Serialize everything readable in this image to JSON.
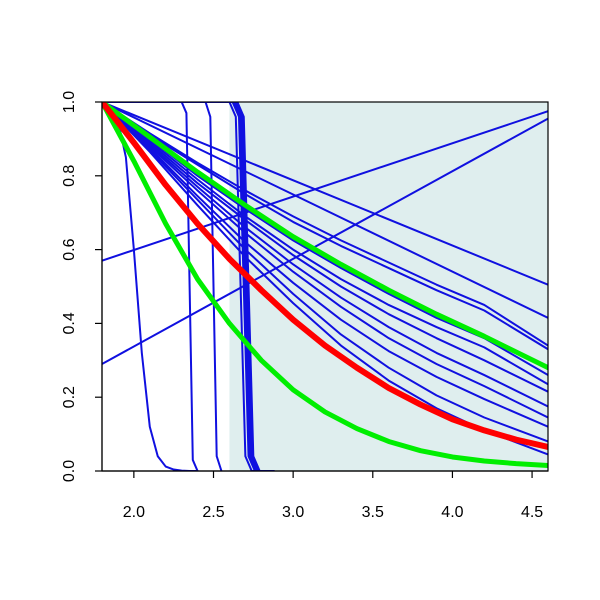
{
  "chart_data": {
    "type": "line",
    "title": "",
    "xlabel": "",
    "ylabel": "",
    "xlim": [
      1.8,
      4.6
    ],
    "ylim": [
      0.0,
      1.0
    ],
    "x_ticks": [
      "2.0",
      "2.5",
      "3.0",
      "3.5",
      "4.0",
      "4.5"
    ],
    "y_ticks": [
      "0.0",
      "0.2",
      "0.4",
      "0.6",
      "0.8",
      "1.0"
    ],
    "grid": false,
    "legend": "none",
    "colors": {
      "blue": "#1010e0",
      "red": "#ff0000",
      "green": "#00ee00",
      "shaded_region": "#dfeeee"
    },
    "shaded_region": {
      "x_start": 2.6,
      "x_end": 4.6,
      "y_start": 0.0,
      "y_end": 1.0
    },
    "series": [
      {
        "color": "blue",
        "width": 2,
        "x": [
          1.8,
          4.6
        ],
        "y": [
          0.57,
          0.975
        ]
      },
      {
        "color": "blue",
        "width": 2,
        "x": [
          1.8,
          4.6
        ],
        "y": [
          0.29,
          0.955
        ]
      },
      {
        "color": "blue",
        "width": 2,
        "x": [
          1.8,
          4.6
        ],
        "y": [
          1.0,
          0.505
        ]
      },
      {
        "color": "blue",
        "width": 2,
        "x": [
          1.8,
          4.6
        ],
        "y": [
          1.0,
          0.415
        ]
      },
      {
        "color": "blue",
        "width": 2,
        "x": [
          1.8,
          2.1,
          2.4,
          2.7,
          3.0,
          3.3,
          3.6,
          3.9,
          4.2,
          4.6
        ],
        "y": [
          1.0,
          0.915,
          0.835,
          0.76,
          0.69,
          0.625,
          0.565,
          0.505,
          0.45,
          0.34
        ]
      },
      {
        "color": "blue",
        "width": 2,
        "x": [
          1.8,
          2.1,
          2.4,
          2.7,
          3.0,
          3.3,
          3.6,
          3.9,
          4.2,
          4.6
        ],
        "y": [
          1.0,
          0.91,
          0.83,
          0.75,
          0.675,
          0.61,
          0.55,
          0.49,
          0.435,
          0.33
        ]
      },
      {
        "color": "blue",
        "width": 2,
        "x": [
          1.8,
          2.1,
          2.4,
          2.7,
          3.0,
          3.3,
          3.6,
          3.9,
          4.2,
          4.6
        ],
        "y": [
          1.0,
          0.9,
          0.8,
          0.71,
          0.625,
          0.55,
          0.48,
          0.415,
          0.36,
          0.26
        ]
      },
      {
        "color": "blue",
        "width": 2,
        "x": [
          1.8,
          2.1,
          2.4,
          2.7,
          3.0,
          3.3,
          3.6,
          3.9,
          4.2,
          4.6
        ],
        "y": [
          1.0,
          0.895,
          0.79,
          0.69,
          0.6,
          0.52,
          0.45,
          0.39,
          0.335,
          0.235
        ]
      },
      {
        "color": "blue",
        "width": 2,
        "x": [
          1.8,
          2.1,
          2.4,
          2.7,
          3.0,
          3.3,
          3.6,
          3.9,
          4.2,
          4.6
        ],
        "y": [
          1.0,
          0.89,
          0.78,
          0.68,
          0.585,
          0.5,
          0.425,
          0.36,
          0.3,
          0.215
        ]
      },
      {
        "color": "blue",
        "width": 2,
        "x": [
          1.8,
          2.1,
          2.4,
          2.7,
          3.0,
          3.3,
          3.6,
          3.9,
          4.2,
          4.6
        ],
        "y": [
          1.0,
          0.885,
          0.77,
          0.66,
          0.56,
          0.47,
          0.39,
          0.32,
          0.26,
          0.175
        ]
      },
      {
        "color": "blue",
        "width": 2,
        "x": [
          1.8,
          2.1,
          2.4,
          2.7,
          3.0,
          3.3,
          3.6,
          3.9,
          4.2,
          4.6
        ],
        "y": [
          1.0,
          0.88,
          0.76,
          0.645,
          0.54,
          0.445,
          0.36,
          0.29,
          0.23,
          0.145
        ]
      },
      {
        "color": "blue",
        "width": 2,
        "x": [
          1.8,
          2.1,
          2.4,
          2.7,
          3.0,
          3.3,
          3.6,
          3.9,
          4.2,
          4.6
        ],
        "y": [
          1.0,
          0.875,
          0.745,
          0.62,
          0.51,
          0.41,
          0.325,
          0.255,
          0.195,
          0.12
        ]
      },
      {
        "color": "blue",
        "width": 2,
        "x": [
          1.8,
          2.1,
          2.4,
          2.7,
          3.0,
          3.3,
          3.6,
          3.9,
          4.2,
          4.6
        ],
        "y": [
          1.0,
          0.87,
          0.735,
          0.6,
          0.48,
          0.37,
          0.28,
          0.205,
          0.145,
          0.08
        ]
      },
      {
        "color": "blue",
        "width": 2,
        "x": [
          1.8,
          2.1,
          2.4,
          2.7,
          3.0,
          3.3,
          3.6,
          3.9,
          4.2,
          4.6
        ],
        "y": [
          1.0,
          0.865,
          0.72,
          0.58,
          0.455,
          0.34,
          0.245,
          0.17,
          0.11,
          0.045
        ]
      },
      {
        "color": "blue",
        "width": 2,
        "x": [
          1.8,
          1.85,
          1.9,
          1.95,
          2.0,
          2.05,
          2.1,
          2.15,
          2.2,
          2.25,
          2.3,
          2.35,
          2.4
        ],
        "y": [
          1.0,
          0.985,
          0.95,
          0.85,
          0.6,
          0.32,
          0.12,
          0.04,
          0.012,
          0.004,
          0.001,
          0.0,
          0.0
        ]
      },
      {
        "color": "blue",
        "width": 2,
        "x": [
          1.8,
          2.3,
          2.33,
          2.35,
          2.37,
          2.4
        ],
        "y": [
          1.0,
          1.0,
          0.97,
          0.5,
          0.03,
          0.0
        ]
      },
      {
        "color": "blue",
        "width": 2,
        "x": [
          1.8,
          2.45,
          2.48,
          2.5,
          2.52,
          2.55
        ],
        "y": [
          1.0,
          1.0,
          0.96,
          0.5,
          0.04,
          0.0
        ]
      },
      {
        "color": "blue",
        "width": 2,
        "x": [
          1.8,
          2.6,
          2.64,
          2.67,
          2.7,
          2.74,
          2.8
        ],
        "y": [
          1.0,
          1.0,
          0.96,
          0.5,
          0.04,
          0.0,
          0.0
        ]
      },
      {
        "color": "blue",
        "width": 2,
        "x": [
          1.8,
          2.62,
          2.66,
          2.69,
          2.72,
          2.76,
          2.82
        ],
        "y": [
          1.0,
          1.0,
          0.96,
          0.5,
          0.04,
          0.0,
          0.0
        ]
      },
      {
        "color": "blue",
        "width": 2,
        "x": [
          1.8,
          2.63,
          2.67,
          2.7,
          2.73,
          2.77,
          2.84
        ],
        "y": [
          1.0,
          1.0,
          0.96,
          0.5,
          0.04,
          0.0,
          0.0
        ]
      },
      {
        "color": "blue",
        "width": 2,
        "x": [
          1.8,
          2.64,
          2.68,
          2.71,
          2.74,
          2.78,
          2.86
        ],
        "y": [
          1.0,
          1.0,
          0.96,
          0.5,
          0.04,
          0.0,
          0.0
        ]
      },
      {
        "color": "blue",
        "width": 2,
        "x": [
          1.8,
          2.65,
          2.69,
          2.72,
          2.75,
          2.79,
          2.88
        ],
        "y": [
          1.0,
          1.0,
          0.96,
          0.5,
          0.04,
          0.0,
          0.0
        ]
      },
      {
        "color": "green",
        "width": 5,
        "x": [
          1.8,
          2.1,
          2.4,
          2.7,
          3.0,
          3.3,
          3.6,
          3.9,
          4.2,
          4.6
        ],
        "y": [
          1.0,
          0.905,
          0.81,
          0.72,
          0.635,
          0.56,
          0.49,
          0.425,
          0.365,
          0.28
        ]
      },
      {
        "color": "green",
        "width": 5,
        "x": [
          1.8,
          2.0,
          2.2,
          2.4,
          2.6,
          2.8,
          3.0,
          3.2,
          3.4,
          3.6,
          3.8,
          4.0,
          4.2,
          4.4,
          4.6
        ],
        "y": [
          1.0,
          0.84,
          0.67,
          0.52,
          0.4,
          0.3,
          0.22,
          0.16,
          0.115,
          0.08,
          0.055,
          0.038,
          0.027,
          0.02,
          0.015
        ]
      },
      {
        "color": "red",
        "width": 6,
        "x": [
          1.8,
          2.0,
          2.2,
          2.4,
          2.6,
          2.8,
          3.0,
          3.2,
          3.4,
          3.6,
          3.8,
          4.0,
          4.2,
          4.4,
          4.6
        ],
        "y": [
          1.0,
          0.89,
          0.775,
          0.67,
          0.575,
          0.49,
          0.41,
          0.34,
          0.28,
          0.225,
          0.18,
          0.14,
          0.11,
          0.085,
          0.065
        ]
      }
    ]
  }
}
